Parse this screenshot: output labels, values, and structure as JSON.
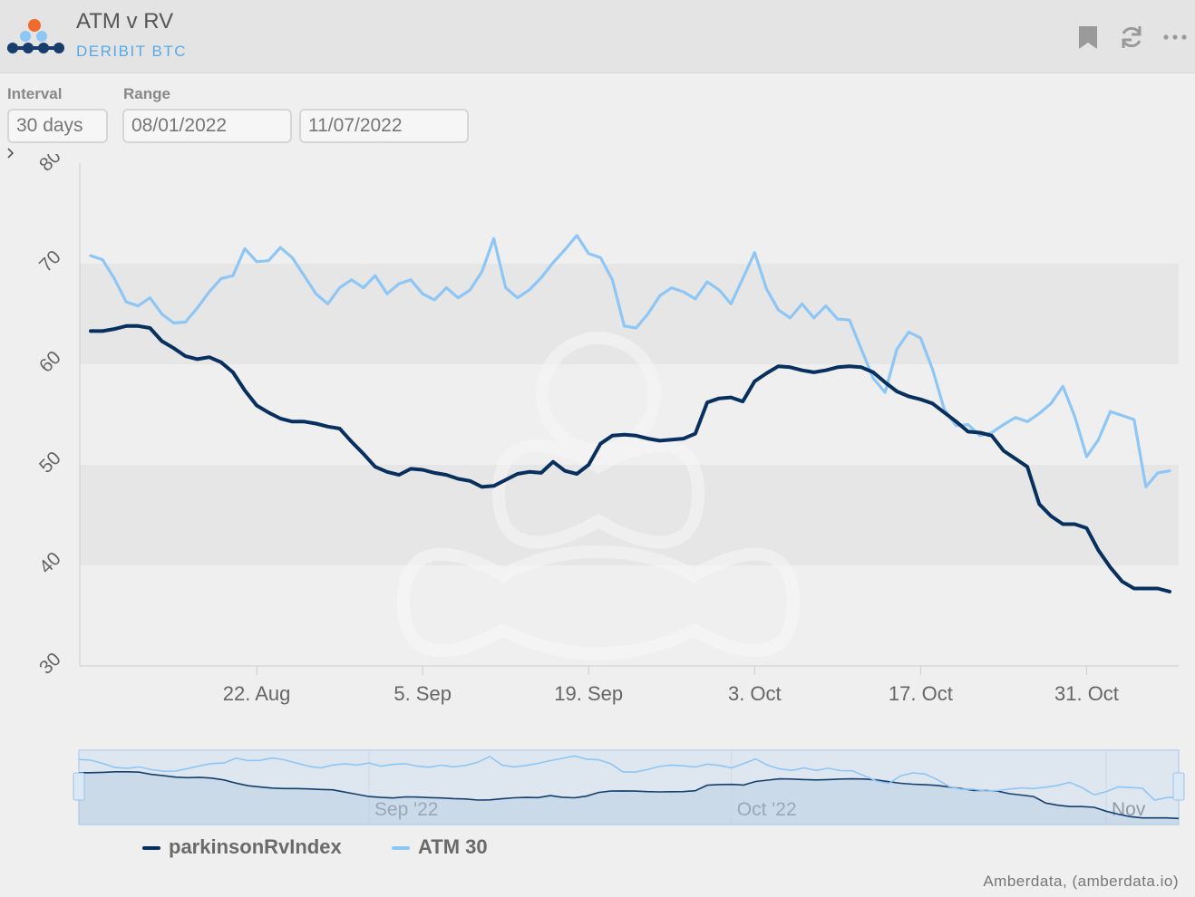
{
  "header": {
    "title": "ATM v RV",
    "subtitle": "DERIBIT BTC",
    "icons": [
      "bookmark-icon",
      "refresh-icon",
      "more-icon"
    ]
  },
  "controls": {
    "interval_label": "Interval",
    "interval_value": "30 days",
    "range_label": "Range",
    "range_start": "08/01/2022",
    "range_end": "11/07/2022"
  },
  "credits": "Amberdata, (amberdata.io)",
  "colors": {
    "rv": "#08305e",
    "atm": "#8ec6f5",
    "plot_band": "#e6e6e6",
    "navigator_fill": "#cfe0f0"
  },
  "chart_data": {
    "type": "line",
    "title": "",
    "xlabel": "",
    "ylabel": "",
    "ylim": [
      30,
      80
    ],
    "y_ticks": [
      "30",
      "40",
      "50",
      "60",
      "70",
      "80"
    ],
    "x_range": [
      "2022-08-08",
      "2022-11-07"
    ],
    "x_ticks": [
      {
        "date": "2022-08-22",
        "label": "22. Aug"
      },
      {
        "date": "2022-09-05",
        "label": "5. Sep"
      },
      {
        "date": "2022-09-19",
        "label": "19. Sep"
      },
      {
        "date": "2022-10-03",
        "label": "3. Oct"
      },
      {
        "date": "2022-10-17",
        "label": "17. Oct"
      },
      {
        "date": "2022-10-31",
        "label": "31. Oct"
      }
    ],
    "navigator_ticks": [
      {
        "date": "2022-09-01",
        "label": "Sep '22"
      },
      {
        "date": "2022-10-01",
        "label": "Oct '22"
      },
      {
        "date": "2022-11-01",
        "label": "Nov"
      }
    ],
    "legend_position": "bottom-left",
    "series": [
      {
        "name": "parkinsonRvIndex",
        "x": [
          "2022-08-08",
          "2022-08-09",
          "2022-08-10",
          "2022-08-11",
          "2022-08-12",
          "2022-08-13",
          "2022-08-14",
          "2022-08-15",
          "2022-08-16",
          "2022-08-17",
          "2022-08-18",
          "2022-08-19",
          "2022-08-20",
          "2022-08-21",
          "2022-08-22",
          "2022-08-23",
          "2022-08-24",
          "2022-08-25",
          "2022-08-26",
          "2022-08-27",
          "2022-08-28",
          "2022-08-29",
          "2022-08-30",
          "2022-08-31",
          "2022-09-01",
          "2022-09-02",
          "2022-09-03",
          "2022-09-04",
          "2022-09-05",
          "2022-09-06",
          "2022-09-07",
          "2022-09-08",
          "2022-09-09",
          "2022-09-10",
          "2022-09-11",
          "2022-09-12",
          "2022-09-13",
          "2022-09-14",
          "2022-09-15",
          "2022-09-16",
          "2022-09-17",
          "2022-09-18",
          "2022-09-19",
          "2022-09-20",
          "2022-09-21",
          "2022-09-22",
          "2022-09-23",
          "2022-09-24",
          "2022-09-25",
          "2022-09-26",
          "2022-09-27",
          "2022-09-28",
          "2022-09-29",
          "2022-09-30",
          "2022-10-01",
          "2022-10-02",
          "2022-10-03",
          "2022-10-04",
          "2022-10-05",
          "2022-10-06",
          "2022-10-07",
          "2022-10-08",
          "2022-10-09",
          "2022-10-10",
          "2022-10-11",
          "2022-10-12",
          "2022-10-13",
          "2022-10-14",
          "2022-10-15",
          "2022-10-16",
          "2022-10-17",
          "2022-10-18",
          "2022-10-19",
          "2022-10-20",
          "2022-10-21",
          "2022-10-22",
          "2022-10-23",
          "2022-10-24",
          "2022-10-25",
          "2022-10-26",
          "2022-10-27",
          "2022-10-28",
          "2022-10-29",
          "2022-10-30",
          "2022-10-31",
          "2022-11-01",
          "2022-11-02",
          "2022-11-03",
          "2022-11-04",
          "2022-11-05",
          "2022-11-06",
          "2022-11-07"
        ],
        "values": [
          63.3,
          63.3,
          63.5,
          63.8,
          63.8,
          63.6,
          62.3,
          61.6,
          60.8,
          60.5,
          60.7,
          60.2,
          59.2,
          57.4,
          55.9,
          55.2,
          54.6,
          54.3,
          54.3,
          54.1,
          53.8,
          53.6,
          52.3,
          51.1,
          49.8,
          49.3,
          49.0,
          49.6,
          49.5,
          49.2,
          49.0,
          48.6,
          48.4,
          47.8,
          47.9,
          48.5,
          49.1,
          49.3,
          49.2,
          50.3,
          49.4,
          49.1,
          50.0,
          52.1,
          52.9,
          53.0,
          52.9,
          52.6,
          52.4,
          52.5,
          52.6,
          53.1,
          56.2,
          56.6,
          56.7,
          56.3,
          58.3,
          59.1,
          59.8,
          59.7,
          59.4,
          59.2,
          59.4,
          59.7,
          59.8,
          59.7,
          59.2,
          58.2,
          57.3,
          56.8,
          56.5,
          56.1,
          55.2,
          54.3,
          53.3,
          53.2,
          52.9,
          51.4,
          50.6,
          49.8,
          46.1,
          44.9,
          44.1,
          44.1,
          43.7,
          41.5,
          39.8,
          38.4,
          37.7,
          37.7,
          37.7,
          37.4
        ]
      },
      {
        "name": "ATM 30",
        "x": [
          "2022-08-08",
          "2022-08-09",
          "2022-08-10",
          "2022-08-11",
          "2022-08-12",
          "2022-08-13",
          "2022-08-14",
          "2022-08-15",
          "2022-08-16",
          "2022-08-17",
          "2022-08-18",
          "2022-08-19",
          "2022-08-20",
          "2022-08-21",
          "2022-08-22",
          "2022-08-23",
          "2022-08-24",
          "2022-08-25",
          "2022-08-26",
          "2022-08-27",
          "2022-08-28",
          "2022-08-29",
          "2022-08-30",
          "2022-08-31",
          "2022-09-01",
          "2022-09-02",
          "2022-09-03",
          "2022-09-04",
          "2022-09-05",
          "2022-09-06",
          "2022-09-07",
          "2022-09-08",
          "2022-09-09",
          "2022-09-10",
          "2022-09-11",
          "2022-09-12",
          "2022-09-13",
          "2022-09-14",
          "2022-09-15",
          "2022-09-16",
          "2022-09-17",
          "2022-09-18",
          "2022-09-19",
          "2022-09-20",
          "2022-09-21",
          "2022-09-22",
          "2022-09-23",
          "2022-09-24",
          "2022-09-25",
          "2022-09-26",
          "2022-09-27",
          "2022-09-28",
          "2022-09-29",
          "2022-09-30",
          "2022-10-01",
          "2022-10-02",
          "2022-10-03",
          "2022-10-04",
          "2022-10-05",
          "2022-10-06",
          "2022-10-07",
          "2022-10-08",
          "2022-10-09",
          "2022-10-10",
          "2022-10-11",
          "2022-10-12",
          "2022-10-13",
          "2022-10-14",
          "2022-10-15",
          "2022-10-16",
          "2022-10-17",
          "2022-10-18",
          "2022-10-19",
          "2022-10-20",
          "2022-10-21",
          "2022-10-22",
          "2022-10-23",
          "2022-10-24",
          "2022-10-25",
          "2022-10-26",
          "2022-10-27",
          "2022-10-28",
          "2022-10-29",
          "2022-10-30",
          "2022-10-31",
          "2022-11-01",
          "2022-11-02",
          "2022-11-03",
          "2022-11-04",
          "2022-11-05",
          "2022-11-06",
          "2022-11-07"
        ],
        "values": [
          70.8,
          70.4,
          68.5,
          66.2,
          65.8,
          66.6,
          65.0,
          64.1,
          64.2,
          65.6,
          67.2,
          68.5,
          68.8,
          71.5,
          70.2,
          70.3,
          71.6,
          70.6,
          68.8,
          67.0,
          66.0,
          67.6,
          68.4,
          67.6,
          68.8,
          67.0,
          68.0,
          68.4,
          67.0,
          66.4,
          67.6,
          66.6,
          67.4,
          69.2,
          72.5,
          67.6,
          66.6,
          67.4,
          68.6,
          70.1,
          71.4,
          72.8,
          71.0,
          70.6,
          68.4,
          63.8,
          63.6,
          65.0,
          66.8,
          67.6,
          67.2,
          66.5,
          68.2,
          67.4,
          66.0,
          68.5,
          71.1,
          67.5,
          65.4,
          64.6,
          66.0,
          64.6,
          65.8,
          64.5,
          64.4,
          61.5,
          58.6,
          57.2,
          61.5,
          63.2,
          62.6,
          59.5,
          55.5,
          53.9,
          54.0,
          52.9,
          53.2,
          54.0,
          54.7,
          54.3,
          55.1,
          56.1,
          57.8,
          54.8,
          50.8,
          52.5,
          55.3,
          54.9,
          54.5,
          47.8,
          49.2,
          49.4
        ]
      }
    ]
  }
}
